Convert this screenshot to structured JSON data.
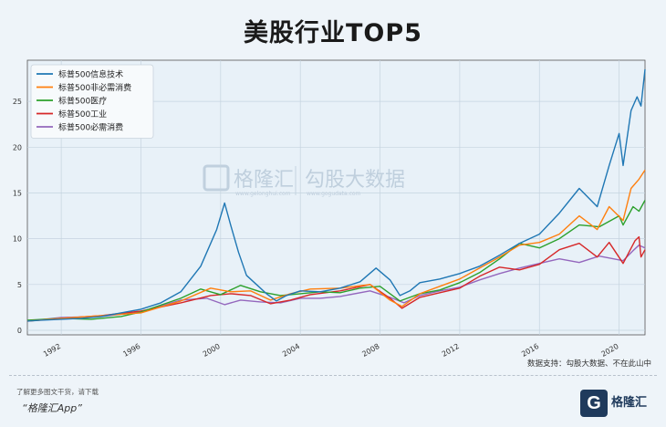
{
  "title": "美股行业TOP5",
  "source_note": "数据支持：勾股大数据、不在此山中",
  "footer": {
    "promo": "了解更多图文干货，请下载",
    "app": "“格隆汇App”",
    "logo_letter": "G",
    "logo_brand": "格隆汇"
  },
  "watermark": {
    "brand_cn": "格隆汇",
    "brand_url": "www.gelonghui.com",
    "partner_cn": "勾股大数据",
    "partner_url": "www.gogudata.com"
  },
  "colors": {
    "tech": "#1f77b4",
    "discretionary": "#ff7f0e",
    "health": "#2ca02c",
    "industrials": "#d62728",
    "staples": "#9467bd",
    "background": "#eef4f9",
    "plot_background": "#e8f1f8"
  },
  "chart_data": {
    "type": "line",
    "title": "美股行业TOP5",
    "xlim": [
      1990.3,
      2021.3
    ],
    "ylim": [
      -0.5,
      29.5
    ],
    "x_ticks": [
      "1992",
      "1996",
      "2000",
      "2004",
      "2008",
      "2012",
      "2016",
      "2020"
    ],
    "y_ticks": [
      "0",
      "5",
      "10",
      "15",
      "20",
      "25"
    ],
    "grid": true,
    "legend_position": "top-left",
    "series": [
      {
        "name": "标普500信息技术",
        "color_key": "tech",
        "points": [
          [
            1990.3,
            1.0
          ],
          [
            1991,
            1.1
          ],
          [
            1992,
            1.2
          ],
          [
            1993,
            1.3
          ],
          [
            1994,
            1.5
          ],
          [
            1995,
            1.9
          ],
          [
            1996,
            2.3
          ],
          [
            1997,
            3.0
          ],
          [
            1998,
            4.2
          ],
          [
            1999,
            7.0
          ],
          [
            1999.8,
            11.0
          ],
          [
            2000.2,
            13.9
          ],
          [
            2000.5,
            11.5
          ],
          [
            2000.9,
            8.5
          ],
          [
            2001.3,
            6.0
          ],
          [
            2001.8,
            5.0
          ],
          [
            2002.3,
            4.0
          ],
          [
            2002.8,
            3.2
          ],
          [
            2003.3,
            3.8
          ],
          [
            2004,
            4.3
          ],
          [
            2005,
            4.2
          ],
          [
            2006,
            4.6
          ],
          [
            2007,
            5.3
          ],
          [
            2007.8,
            6.8
          ],
          [
            2008.5,
            5.5
          ],
          [
            2009,
            3.8
          ],
          [
            2009.5,
            4.3
          ],
          [
            2010,
            5.2
          ],
          [
            2011,
            5.6
          ],
          [
            2012,
            6.2
          ],
          [
            2013,
            7.0
          ],
          [
            2014,
            8.2
          ],
          [
            2015,
            9.5
          ],
          [
            2016,
            10.5
          ],
          [
            2017,
            12.8
          ],
          [
            2018,
            15.5
          ],
          [
            2018.9,
            13.5
          ],
          [
            2019.5,
            18.0
          ],
          [
            2020,
            21.5
          ],
          [
            2020.2,
            18.0
          ],
          [
            2020.6,
            24.0
          ],
          [
            2020.9,
            25.5
          ],
          [
            2021.1,
            24.5
          ],
          [
            2021.3,
            28.5
          ]
        ]
      },
      {
        "name": "标普500非必需消费",
        "color_key": "discretionary",
        "points": [
          [
            1990.3,
            1.0
          ],
          [
            1992,
            1.3
          ],
          [
            1994,
            1.6
          ],
          [
            1996,
            1.9
          ],
          [
            1998,
            3.2
          ],
          [
            1999.5,
            4.6
          ],
          [
            2000.5,
            4.2
          ],
          [
            2001.5,
            4.3
          ],
          [
            2002.5,
            3.3
          ],
          [
            2003.5,
            4.0
          ],
          [
            2004.5,
            4.5
          ],
          [
            2006,
            4.6
          ],
          [
            2007.5,
            5.0
          ],
          [
            2008.5,
            3.3
          ],
          [
            2009.1,
            2.6
          ],
          [
            2010,
            4.0
          ],
          [
            2011,
            4.8
          ],
          [
            2012,
            5.6
          ],
          [
            2013,
            6.8
          ],
          [
            2014,
            8.0
          ],
          [
            2015,
            9.3
          ],
          [
            2016,
            9.6
          ],
          [
            2017,
            10.5
          ],
          [
            2018,
            12.5
          ],
          [
            2018.9,
            11.0
          ],
          [
            2019.5,
            13.5
          ],
          [
            2020.2,
            12.0
          ],
          [
            2020.6,
            15.5
          ],
          [
            2021,
            16.5
          ],
          [
            2021.3,
            17.5
          ]
        ]
      },
      {
        "name": "标普500医疗",
        "color_key": "health",
        "points": [
          [
            1990.3,
            1.1
          ],
          [
            1992,
            1.3
          ],
          [
            1993.5,
            1.2
          ],
          [
            1995,
            1.5
          ],
          [
            1996,
            2.0
          ],
          [
            1998,
            3.5
          ],
          [
            1999,
            4.5
          ],
          [
            2000,
            3.9
          ],
          [
            2001,
            4.9
          ],
          [
            2002,
            4.2
          ],
          [
            2003,
            3.8
          ],
          [
            2004,
            4.0
          ],
          [
            2005,
            4.2
          ],
          [
            2006,
            4.1
          ],
          [
            2007,
            4.6
          ],
          [
            2008,
            4.8
          ],
          [
            2009,
            3.2
          ],
          [
            2010,
            4.0
          ],
          [
            2011,
            4.4
          ],
          [
            2012,
            5.2
          ],
          [
            2013,
            6.3
          ],
          [
            2014,
            7.8
          ],
          [
            2015,
            9.5
          ],
          [
            2016,
            9.0
          ],
          [
            2017,
            10.0
          ],
          [
            2018,
            11.5
          ],
          [
            2019,
            11.3
          ],
          [
            2020,
            12.5
          ],
          [
            2020.2,
            11.5
          ],
          [
            2020.7,
            13.5
          ],
          [
            2021,
            13.0
          ],
          [
            2021.3,
            14.2
          ]
        ]
      },
      {
        "name": "标普500工业",
        "color_key": "industrials",
        "points": [
          [
            1990.3,
            1.0
          ],
          [
            1992,
            1.3
          ],
          [
            1994,
            1.6
          ],
          [
            1996,
            2.1
          ],
          [
            1998,
            3.0
          ],
          [
            1999.5,
            3.8
          ],
          [
            2000.5,
            4.0
          ],
          [
            2001.5,
            3.8
          ],
          [
            2002.5,
            2.9
          ],
          [
            2003.5,
            3.3
          ],
          [
            2004.5,
            3.9
          ],
          [
            2006,
            4.3
          ],
          [
            2007.5,
            5.0
          ],
          [
            2008.5,
            3.5
          ],
          [
            2009.1,
            2.4
          ],
          [
            2010,
            3.6
          ],
          [
            2011,
            4.1
          ],
          [
            2012,
            4.6
          ],
          [
            2013,
            5.9
          ],
          [
            2014,
            6.9
          ],
          [
            2015,
            6.6
          ],
          [
            2016,
            7.2
          ],
          [
            2017,
            8.8
          ],
          [
            2018,
            9.5
          ],
          [
            2018.9,
            8.0
          ],
          [
            2019.5,
            9.6
          ],
          [
            2020.2,
            7.3
          ],
          [
            2020.8,
            9.8
          ],
          [
            2021,
            10.2
          ],
          [
            2021.1,
            8.0
          ],
          [
            2021.3,
            8.8
          ]
        ]
      },
      {
        "name": "标普500必需消费",
        "color_key": "staples",
        "points": [
          [
            1990.3,
            1.0
          ],
          [
            1992,
            1.4
          ],
          [
            1994,
            1.5
          ],
          [
            1996,
            2.0
          ],
          [
            1998,
            3.3
          ],
          [
            1999.3,
            3.5
          ],
          [
            2000.2,
            2.8
          ],
          [
            2001,
            3.3
          ],
          [
            2002,
            3.1
          ],
          [
            2003,
            3.0
          ],
          [
            2004,
            3.5
          ],
          [
            2005,
            3.5
          ],
          [
            2006,
            3.7
          ],
          [
            2007.5,
            4.3
          ],
          [
            2008.5,
            3.6
          ],
          [
            2009.2,
            3.0
          ],
          [
            2010,
            3.8
          ],
          [
            2011,
            4.3
          ],
          [
            2012,
            4.7
          ],
          [
            2013,
            5.5
          ],
          [
            2014,
            6.2
          ],
          [
            2015,
            6.8
          ],
          [
            2016,
            7.3
          ],
          [
            2017,
            7.8
          ],
          [
            2018,
            7.4
          ],
          [
            2019,
            8.1
          ],
          [
            2020.2,
            7.6
          ],
          [
            2020.7,
            8.7
          ],
          [
            2021,
            9.3
          ],
          [
            2021.3,
            9.0
          ]
        ]
      }
    ]
  }
}
